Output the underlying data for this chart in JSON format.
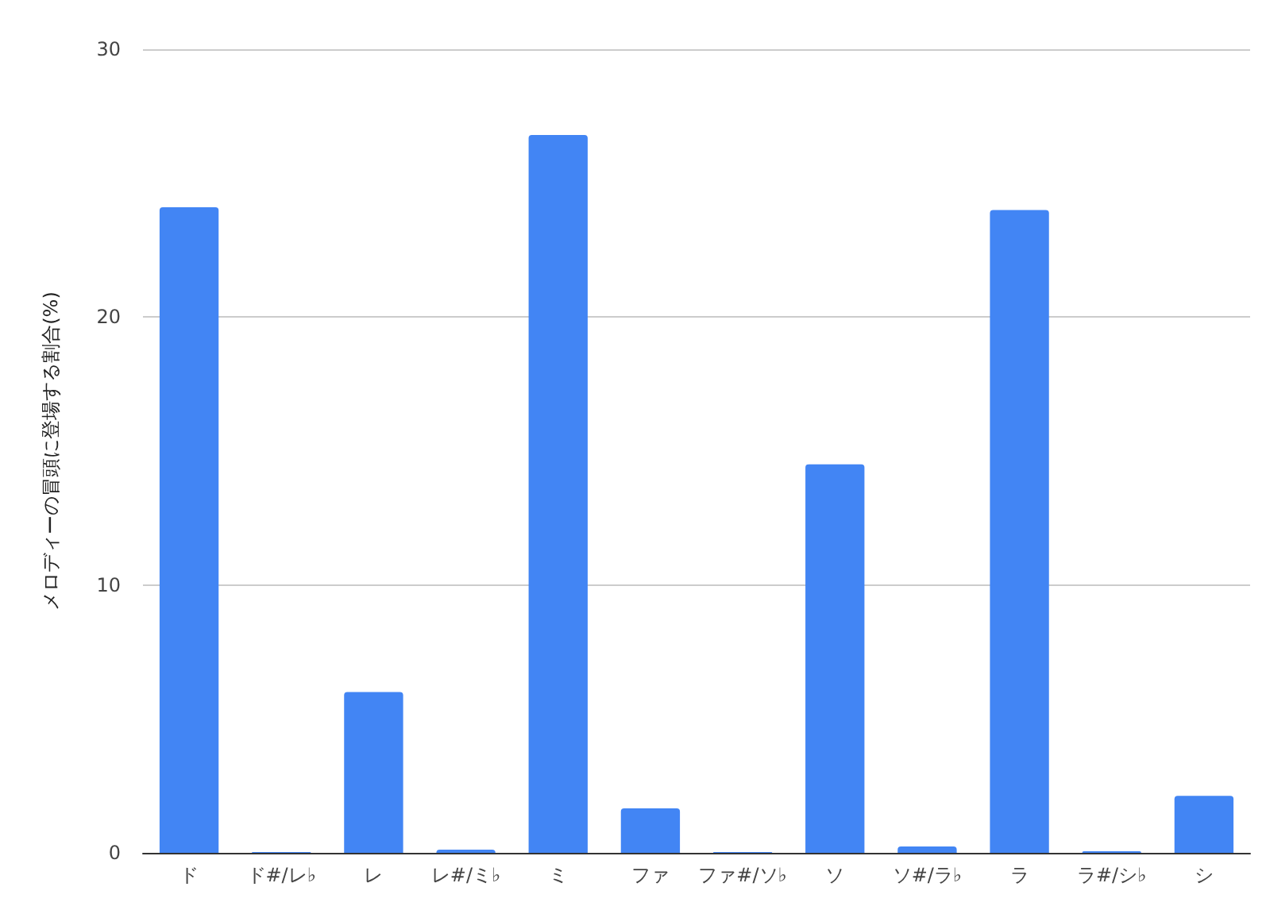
{
  "chart_data": {
    "type": "bar",
    "ylabel": "メロディーの冒頭に登場する割合(%)",
    "categories": [
      "ド",
      "ド#/レ♭",
      "レ",
      "レ#/ミ♭",
      "ミ",
      "ファ",
      "ファ#/ソ♭",
      "ソ",
      "ソ#/ラ♭",
      "ラ",
      "ラ#/シ♭",
      "シ"
    ],
    "values": [
      24.1,
      0.03,
      6.0,
      0.12,
      26.8,
      1.66,
      0.03,
      14.5,
      0.24,
      24.0,
      0.06,
      2.13
    ],
    "color": "#4285f4",
    "ylim": [
      0,
      30
    ],
    "yticks": [
      0,
      10,
      20,
      30
    ],
    "grid": "y"
  }
}
